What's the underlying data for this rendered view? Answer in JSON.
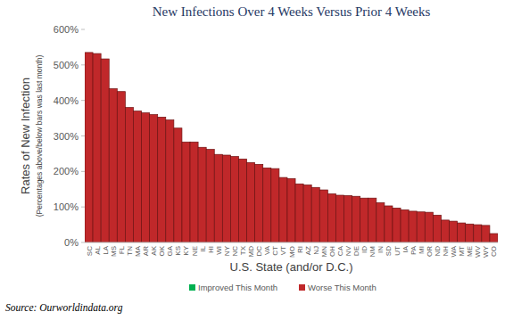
{
  "chart_data": {
    "type": "bar",
    "title": "New Infections Over 4 Weeks Versus Prior 4 Weeks",
    "y_label": "Rates of New Infection",
    "y_label_note": "(Percentages above/below bars was last month)",
    "x_label": "U.S. State (and/or D.C.)",
    "source": "Source: Ourworldindata.org",
    "categories": [
      "SC",
      "AL",
      "LA",
      "MS",
      "FL",
      "TN",
      "MA",
      "AR",
      "AK",
      "OK",
      "GA",
      "KS",
      "KY",
      "NE",
      "IL",
      "HI",
      "WI",
      "NY",
      "NC",
      "TX",
      "MD",
      "DC",
      "VA",
      "CT",
      "VT",
      "MO",
      "RI",
      "AZ",
      "NJ",
      "MN",
      "OH",
      "CA",
      "NV",
      "DE",
      "ID",
      "NM",
      "IN",
      "SD",
      "UT",
      "IA",
      "PA",
      "MI",
      "OR",
      "ND",
      "NH",
      "WA",
      "MT",
      "ME",
      "WV",
      "WY",
      "CO"
    ],
    "series": [
      {
        "name": "Improved This Month",
        "color": "#00b050",
        "values": [
          null,
          null,
          null,
          null,
          null,
          null,
          null,
          null,
          null,
          null,
          null,
          null,
          null,
          null,
          null,
          null,
          null,
          null,
          null,
          null,
          null,
          null,
          null,
          null,
          null,
          null,
          null,
          null,
          null,
          null,
          null,
          null,
          null,
          null,
          null,
          null,
          null,
          null,
          null,
          null,
          null,
          null,
          null,
          null,
          null,
          null,
          null,
          null,
          null,
          null,
          null
        ]
      },
      {
        "name": "Worse This Month",
        "color": "#c0282a",
        "values": [
          535,
          532,
          517,
          433,
          425,
          380,
          370,
          365,
          360,
          353,
          345,
          322,
          283,
          283,
          268,
          262,
          248,
          246,
          242,
          235,
          225,
          220,
          210,
          208,
          183,
          180,
          165,
          162,
          155,
          148,
          137,
          133,
          132,
          130,
          125,
          125,
          112,
          103,
          97,
          92,
          88,
          86,
          85,
          77,
          63,
          60,
          55,
          52,
          50,
          48,
          25
        ]
      }
    ],
    "ylim": [
      0,
      600
    ],
    "yticks": [
      {
        "value": 0,
        "label": "0%"
      },
      {
        "value": 100,
        "label": "100%"
      },
      {
        "value": 200,
        "label": "200%"
      },
      {
        "value": 300,
        "label": "300%"
      },
      {
        "value": 400,
        "label": "400%"
      },
      {
        "value": 500,
        "label": "500%"
      },
      {
        "value": 600,
        "label": "600%"
      }
    ],
    "grid": false,
    "legend": "bottom"
  }
}
